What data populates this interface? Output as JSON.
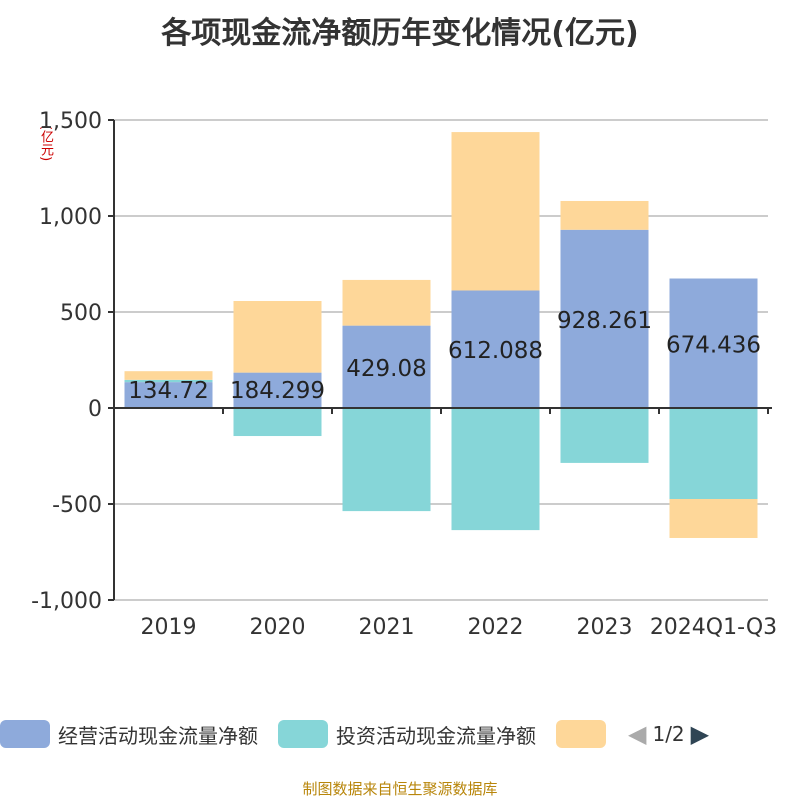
{
  "chart_data": {
    "type": "bar",
    "stacked": true,
    "title": "各项现金流净额历年变化情况(亿元)",
    "ylabel": "(亿元)",
    "categories": [
      "2019",
      "2020",
      "2021",
      "2022",
      "2023",
      "2024Q1-Q3"
    ],
    "ylim": [
      -1000,
      1500
    ],
    "yticks": [
      "-1,000",
      "-500",
      "0",
      "500",
      "1,000",
      "1,500"
    ],
    "ytick_values": [
      -1000,
      -500,
      0,
      500,
      1000,
      1500
    ],
    "series": [
      {
        "name": "经营活动现金流量净额",
        "color": "#8eaadb",
        "values": [
          134.72,
          184.299,
          429.08,
          612.088,
          928.261,
          674.436
        ],
        "labels": [
          "134.72",
          "184.299",
          "429.08",
          "612.088",
          "928.261",
          "674.436"
        ]
      },
      {
        "name": "投资活动现金流量净额",
        "color": "#86d6d8",
        "values": [
          12,
          -146,
          -537,
          -636,
          -286,
          -474
        ]
      },
      {
        "name": "",
        "color": "#fed799",
        "values": [
          45,
          373,
          238,
          825,
          150,
          -203
        ]
      }
    ]
  },
  "legend": {
    "page": "1/2"
  },
  "source": "制图数据来自恒生聚源数据库"
}
